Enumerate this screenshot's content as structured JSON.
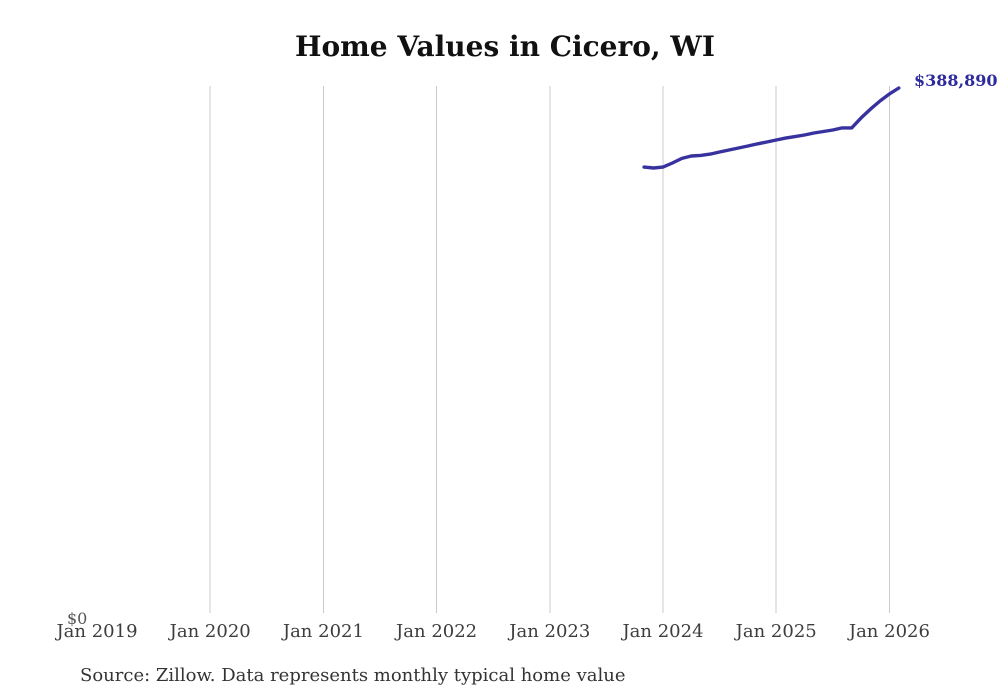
{
  "title": "Home Values in Cicero, WI",
  "source_note": "Source: Zillow. Data represents monthly typical home value",
  "latest_value_label": "$388,890",
  "axis": {
    "y_zero_label": "$0",
    "x_tick_labels": [
      "Jan 2019",
      "Jan 2020",
      "Jan 2021",
      "Jan 2022",
      "Jan 2023",
      "Jan 2024",
      "Jan 2025",
      "Jan 2026"
    ]
  },
  "colors": {
    "line": "#38329f",
    "latest_label": "#2c2a9c",
    "gridline": "#cbcbcb",
    "title": "#111111",
    "axis_text": "#3d3d3d",
    "source_text": "#333333",
    "background": "#ffffff"
  },
  "chart_data": {
    "type": "line",
    "title": "Home Values in Cicero, WI",
    "series_name": "Monthly typical home value (Zillow)",
    "x": [
      "Nov 2023",
      "Dec 2023",
      "Jan 2024",
      "Feb 2024",
      "Mar 2024",
      "Apr 2024",
      "May 2024",
      "Jun 2024",
      "Jul 2024",
      "Aug 2024",
      "Sep 2024",
      "Oct 2024",
      "Nov 2024",
      "Dec 2024",
      "Jan 2025",
      "Feb 2025",
      "Mar 2025",
      "Apr 2025",
      "May 2025",
      "Jun 2025",
      "Jul 2025",
      "Aug 2025",
      "Sep 2025",
      "Oct 2025",
      "Nov 2025",
      "Dec 2025",
      "Jan 2026",
      "Feb 2026"
    ],
    "values": [
      331100,
      330400,
      331100,
      334100,
      337400,
      339200,
      339600,
      340600,
      342100,
      343600,
      345000,
      346500,
      348000,
      349400,
      350900,
      352300,
      353400,
      354500,
      356000,
      357100,
      358200,
      359700,
      359700,
      367000,
      373500,
      379400,
      384500,
      388890
    ],
    "xlabel": "",
    "ylabel": "",
    "ylim": [
      0,
      404000
    ],
    "x_axis_range": [
      "Jan 2019",
      "Feb 2026"
    ],
    "x_tick_labels": [
      "Jan 2019",
      "Jan 2020",
      "Jan 2021",
      "Jan 2022",
      "Jan 2023",
      "Jan 2024",
      "Jan 2025",
      "Jan 2026"
    ],
    "grid": "vertical gridlines at yearly ticks (2020-2026), no horizontal gridlines",
    "legend": "none",
    "annotations": [
      {
        "x": "Feb 2026",
        "text": "$388,890",
        "note": "end-of-line value label, clipped at right edge"
      },
      {
        "x": "Jan 2019",
        "y": 0,
        "text": "$0",
        "note": "y-axis zero label at bottom left"
      }
    ]
  }
}
